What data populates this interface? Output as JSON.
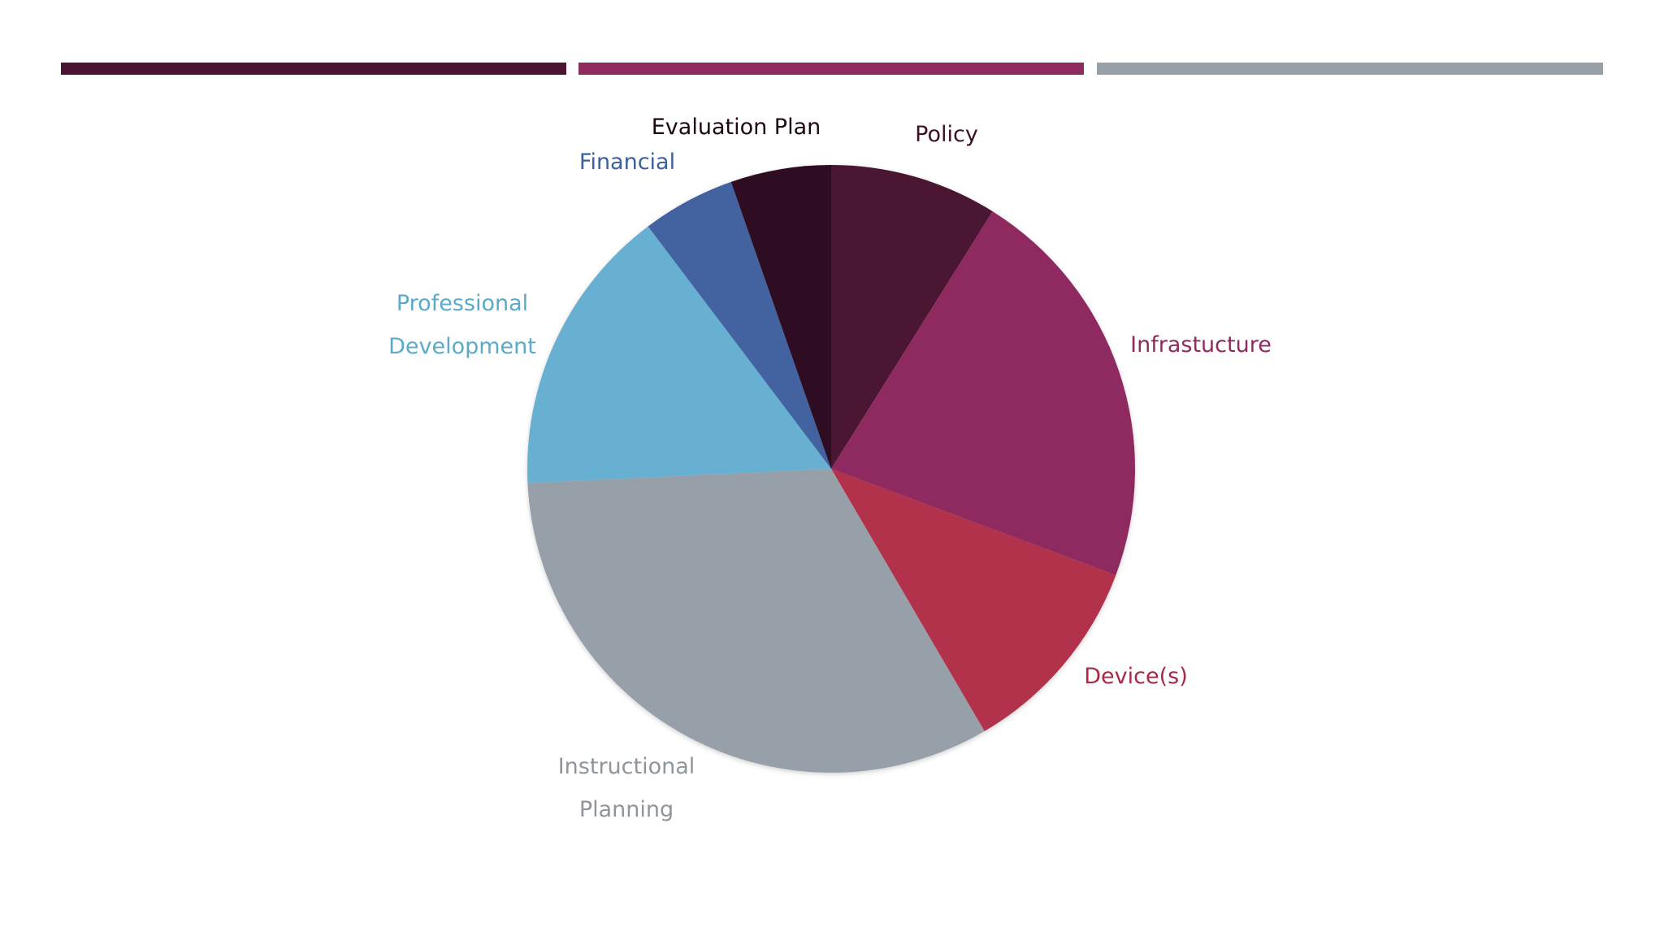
{
  "accent_bars": [
    {
      "color": "#4B1432"
    },
    {
      "color": "#8E2C60"
    },
    {
      "color": "#97A0A6"
    }
  ],
  "chart_data": {
    "type": "pie",
    "title": "",
    "start_angle_deg": 0,
    "direction": "clockwise",
    "legend": "none",
    "slices": [
      {
        "label": "Policy",
        "value": 9,
        "color": "#4B1432",
        "label_color": "#3D0F28"
      },
      {
        "label": "Infrastucture",
        "value": 22,
        "color": "#8E2C60",
        "label_color": "#8E2C60"
      },
      {
        "label": "Device(s)",
        "value": 11,
        "color": "#B3304B",
        "label_color": "#A82846"
      },
      {
        "label": "Instructional Planning",
        "label_lines": [
          "Instructional",
          "Planning"
        ],
        "value": 33,
        "color": "#97A0A9",
        "label_color": "#8E959C"
      },
      {
        "label": "Professional Development",
        "label_lines": [
          "Professional",
          "Development"
        ],
        "value": 15.6,
        "color": "#67B0D1",
        "label_color": "#5AAAC8"
      },
      {
        "label": "Financial",
        "value": 5,
        "color": "#4262A0",
        "label_color": "#3D5F9E"
      },
      {
        "label": "Evaluation Plan",
        "value": 5.4,
        "color": "#2E0D21",
        "label_color": "#1E0716"
      }
    ]
  }
}
